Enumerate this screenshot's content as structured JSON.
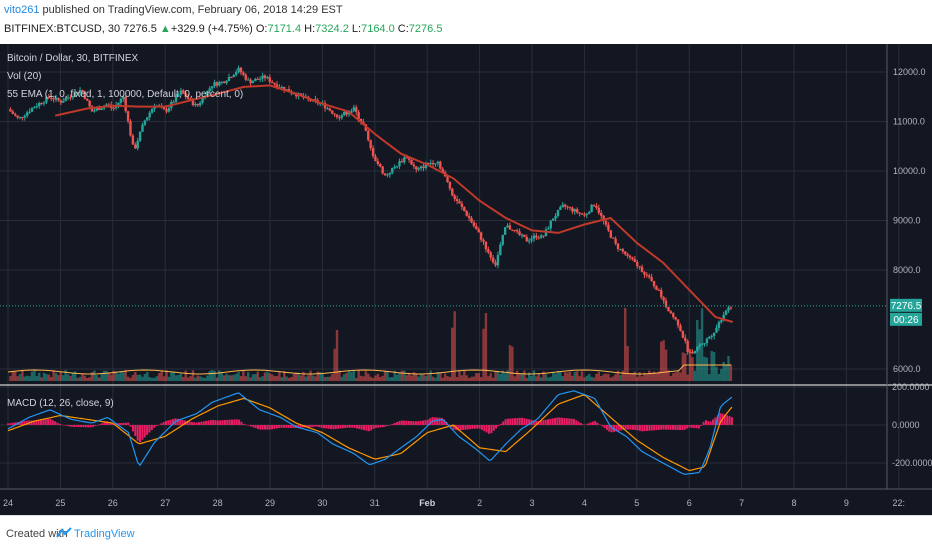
{
  "header": {
    "author": "vito261",
    "published_text": " published on TradingView.com, February 06, 2018 14:29 EST",
    "symbol": "BITFINEX:BTCUSD, 30",
    "last": "7276.5",
    "change": "+329.9 (+4.75%)",
    "o_label": "O:",
    "o_value": "7171.4",
    "h_label": "H:",
    "h_value": "7324.2",
    "l_label": "L:",
    "l_value": "7164.0",
    "c_label": "C:",
    "c_value": "7276.5"
  },
  "legend": {
    "title": "Bitcoin / Dollar, 30, BITFINEX",
    "vol": "Vol (20)",
    "ema": "55 EMA (1, 0, fixed, 1, 100000, Default, 0, percent, 0)",
    "macd": "MACD (12, 26, close, 9)"
  },
  "price_badge": "7276.5",
  "time_badge": "00:26",
  "footer": {
    "created": "Created with",
    "brand": "TradingView"
  },
  "colors": {
    "bg": "#131722",
    "up": "#26a69a",
    "down": "#ef5350",
    "ema": "#c0392b",
    "macd": "#2196f3",
    "signal": "#ff9800",
    "hist": "#e91e63",
    "badge": "#26a69a"
  },
  "chart_data": [
    {
      "type": "candlestick",
      "title": "Bitcoin / Dollar, 30, BITFINEX",
      "ylim": [
        5500,
        12500
      ],
      "y_ticks": [
        "12000.0",
        "11000.0",
        "10000.0",
        "9000.0",
        "8000.0",
        "6000.0"
      ],
      "x_ticks": [
        "24",
        "25",
        "26",
        "27",
        "28",
        "29",
        "30",
        "31",
        "Feb",
        "2",
        "3",
        "4",
        "5",
        "6",
        "7",
        "8",
        "9",
        "22:"
      ],
      "close_path": [
        [
          0,
          11250
        ],
        [
          0.2,
          11050
        ],
        [
          0.5,
          11300
        ],
        [
          0.8,
          11500
        ],
        [
          1.0,
          11400
        ],
        [
          1.4,
          11650
        ],
        [
          1.6,
          11200
        ],
        [
          1.9,
          11350
        ],
        [
          2.0,
          11250
        ],
        [
          2.2,
          11500
        ],
        [
          2.4,
          10400
        ],
        [
          2.6,
          11000
        ],
        [
          2.8,
          11350
        ],
        [
          3.0,
          11200
        ],
        [
          3.3,
          11600
        ],
        [
          3.6,
          11300
        ],
        [
          3.9,
          11750
        ],
        [
          4.1,
          11800
        ],
        [
          4.4,
          12050
        ],
        [
          4.6,
          11800
        ],
        [
          4.9,
          11900
        ],
        [
          5.1,
          11750
        ],
        [
          5.4,
          11600
        ],
        [
          5.7,
          11450
        ],
        [
          6.0,
          11350
        ],
        [
          6.3,
          11100
        ],
        [
          6.6,
          11250
        ],
        [
          6.8,
          10900
        ],
        [
          6.9,
          10500
        ],
        [
          7.0,
          10250
        ],
        [
          7.2,
          9900
        ],
        [
          7.4,
          10100
        ],
        [
          7.6,
          10300
        ],
        [
          7.8,
          10000
        ],
        [
          8.0,
          10150
        ],
        [
          8.2,
          10200
        ],
        [
          8.5,
          9500
        ],
        [
          8.8,
          9050
        ],
        [
          9.0,
          8700
        ],
        [
          9.2,
          8300
        ],
        [
          9.3,
          8100
        ],
        [
          9.5,
          8900
        ],
        [
          9.7,
          8750
        ],
        [
          9.9,
          8600
        ],
        [
          10.1,
          8700
        ],
        [
          10.2,
          8650
        ],
        [
          10.4,
          9050
        ],
        [
          10.6,
          9300
        ],
        [
          10.8,
          9200
        ],
        [
          11.0,
          9100
        ],
        [
          11.2,
          9350
        ],
        [
          11.4,
          8900
        ],
        [
          11.6,
          8500
        ],
        [
          11.8,
          8300
        ],
        [
          12.1,
          8000
        ],
        [
          12.4,
          7600
        ],
        [
          12.6,
          7200
        ],
        [
          12.8,
          6900
        ],
        [
          13.0,
          6300
        ],
        [
          13.1,
          6400
        ],
        [
          13.3,
          6550
        ],
        [
          13.5,
          6800
        ],
        [
          13.6,
          7000
        ],
        [
          13.7,
          7200
        ],
        [
          13.83,
          7276.5
        ]
      ],
      "ema55": [
        [
          0.9,
          11120
        ],
        [
          1.5,
          11260
        ],
        [
          2.0,
          11320
        ],
        [
          2.5,
          11300
        ],
        [
          3.0,
          11300
        ],
        [
          3.5,
          11430
        ],
        [
          4.0,
          11560
        ],
        [
          4.5,
          11700
        ],
        [
          5.0,
          11730
        ],
        [
          5.5,
          11560
        ],
        [
          6.0,
          11360
        ],
        [
          6.5,
          11200
        ],
        [
          7.0,
          10750
        ],
        [
          7.5,
          10350
        ],
        [
          8.0,
          10130
        ],
        [
          8.5,
          9850
        ],
        [
          9.0,
          9400
        ],
        [
          9.5,
          9050
        ],
        [
          10.0,
          8800
        ],
        [
          10.5,
          8750
        ],
        [
          11.0,
          8920
        ],
        [
          11.5,
          9050
        ],
        [
          12.0,
          8550
        ],
        [
          12.5,
          8150
        ],
        [
          13.0,
          7600
        ],
        [
          13.5,
          7050
        ],
        [
          13.83,
          6950
        ]
      ],
      "last_price": 7276.5
    },
    {
      "type": "bar",
      "name": "Vol (20)",
      "spike_days": [
        6.25,
        8.5,
        9.1,
        9.6,
        11.8,
        12.5,
        13.2
      ]
    },
    {
      "type": "line",
      "title": "MACD (12, 26, close, 9)",
      "ylim": [
        -300,
        250
      ],
      "y_ticks": [
        "200.0000",
        "0.0000",
        "-200.0000"
      ],
      "macd": [
        [
          0,
          -20
        ],
        [
          0.4,
          40
        ],
        [
          0.8,
          80
        ],
        [
          1.2,
          30
        ],
        [
          1.6,
          10
        ],
        [
          1.9,
          40
        ],
        [
          2.3,
          -40
        ],
        [
          2.5,
          -220
        ],
        [
          2.8,
          -90
        ],
        [
          3.2,
          20
        ],
        [
          3.6,
          60
        ],
        [
          3.9,
          120
        ],
        [
          4.4,
          170
        ],
        [
          4.8,
          80
        ],
        [
          5.2,
          40
        ],
        [
          5.5,
          -10
        ],
        [
          5.9,
          -40
        ],
        [
          6.2,
          -100
        ],
        [
          6.6,
          -150
        ],
        [
          6.9,
          -210
        ],
        [
          7.2,
          -180
        ],
        [
          7.5,
          -120
        ],
        [
          7.8,
          -60
        ],
        [
          8.1,
          20
        ],
        [
          8.3,
          30
        ],
        [
          8.6,
          -60
        ],
        [
          8.9,
          -120
        ],
        [
          9.2,
          -190
        ],
        [
          9.5,
          -100
        ],
        [
          9.8,
          -20
        ],
        [
          10.1,
          30
        ],
        [
          10.5,
          160
        ],
        [
          10.8,
          180
        ],
        [
          11.2,
          140
        ],
        [
          11.5,
          -10
        ],
        [
          11.8,
          -60
        ],
        [
          12.1,
          -140
        ],
        [
          12.5,
          -200
        ],
        [
          12.9,
          -260
        ],
        [
          13.2,
          -250
        ],
        [
          13.4,
          -120
        ],
        [
          13.6,
          100
        ],
        [
          13.83,
          150
        ]
      ],
      "signal": [
        [
          0,
          -30
        ],
        [
          0.5,
          20
        ],
        [
          1.0,
          50
        ],
        [
          1.5,
          30
        ],
        [
          2.0,
          10
        ],
        [
          2.5,
          -100
        ],
        [
          3.0,
          -60
        ],
        [
          3.5,
          30
        ],
        [
          4.0,
          100
        ],
        [
          4.5,
          140
        ],
        [
          5.0,
          90
        ],
        [
          5.5,
          10
        ],
        [
          6.0,
          -40
        ],
        [
          6.5,
          -120
        ],
        [
          7.0,
          -180
        ],
        [
          7.5,
          -150
        ],
        [
          8.0,
          -40
        ],
        [
          8.5,
          0
        ],
        [
          9.0,
          -120
        ],
        [
          9.5,
          -140
        ],
        [
          10.0,
          -20
        ],
        [
          10.5,
          110
        ],
        [
          11.0,
          160
        ],
        [
          11.5,
          40
        ],
        [
          12.0,
          -80
        ],
        [
          12.5,
          -170
        ],
        [
          13.0,
          -240
        ],
        [
          13.3,
          -220
        ],
        [
          13.6,
          20
        ],
        [
          13.83,
          100
        ]
      ]
    }
  ]
}
